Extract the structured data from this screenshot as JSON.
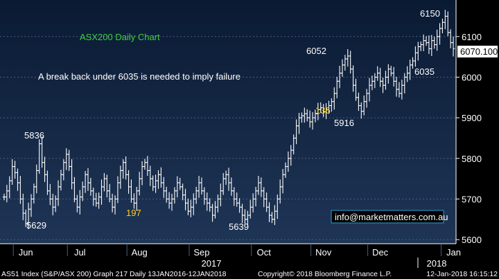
{
  "chart_data": {
    "type": "ohlc",
    "title": "ASX200 Daily Chart",
    "note": "A break back under 6035 is needed to imply failure",
    "email": "info@marketmatters.com.au",
    "last_price_label": "6070.100",
    "ylim": [
      5590,
      6190
    ],
    "y_ticks": [
      5600,
      5700,
      5800,
      5900,
      6000,
      6100
    ],
    "x_month_labels": [
      "Jun",
      "Jul",
      "Aug",
      "Sep",
      "Oct",
      "Nov",
      "Dec",
      "Jan"
    ],
    "x_year_labels": [
      "2017",
      "2018"
    ],
    "annotations": [
      {
        "text": "5836",
        "color": "white"
      },
      {
        "text": "5629",
        "color": "white"
      },
      {
        "text": "197",
        "color": "yellow"
      },
      {
        "text": "5639",
        "color": "white"
      },
      {
        "text": "6052",
        "color": "white"
      },
      {
        "text": "136",
        "color": "yellow"
      },
      {
        "text": "5916",
        "color": "white"
      },
      {
        "text": "6150",
        "color": "white"
      },
      {
        "text": "6035",
        "color": "white"
      }
    ],
    "closes": [
      5705,
      5720,
      5745,
      5780,
      5765,
      5740,
      5700,
      5665,
      5640,
      5675,
      5700,
      5730,
      5770,
      5836,
      5790,
      5760,
      5720,
      5700,
      5680,
      5700,
      5730,
      5760,
      5790,
      5810,
      5780,
      5740,
      5700,
      5680,
      5705,
      5730,
      5760,
      5740,
      5720,
      5700,
      5690,
      5705,
      5730,
      5750,
      5720,
      5700,
      5680,
      5700,
      5740,
      5770,
      5790,
      5760,
      5730,
      5700,
      5690,
      5720,
      5750,
      5780,
      5790,
      5770,
      5750,
      5730,
      5745,
      5760,
      5740,
      5720,
      5700,
      5690,
      5700,
      5720,
      5740,
      5730,
      5710,
      5690,
      5670,
      5680,
      5700,
      5720,
      5740,
      5720,
      5700,
      5690,
      5680,
      5660,
      5680,
      5700,
      5720,
      5750,
      5760,
      5740,
      5720,
      5700,
      5690,
      5680,
      5660,
      5650,
      5660,
      5680,
      5700,
      5720,
      5740,
      5720,
      5700,
      5680,
      5660,
      5650,
      5670,
      5700,
      5730,
      5760,
      5780,
      5800,
      5820,
      5850,
      5880,
      5900,
      5905,
      5910,
      5900,
      5890,
      5900,
      5910,
      5920,
      5925,
      5915,
      5920,
      5930,
      5940,
      5960,
      5990,
      6010,
      6030,
      6045,
      6052,
      6020,
      5980,
      5950,
      5930,
      5916,
      5940,
      5960,
      5980,
      5990,
      6000,
      6010,
      5990,
      5980,
      6000,
      6020,
      6010,
      5990,
      5970,
      5960,
      5980,
      6000,
      6010,
      6030,
      6040,
      6060,
      6075,
      6080,
      6090,
      6085,
      6070,
      6090,
      6080,
      6100,
      6120,
      6135,
      6150,
      6110,
      6085,
      6070
    ],
    "email_box": true,
    "footer": {
      "left": "AS51 Index (S&P/ASX 200) Graph 217  Daily 13JAN2016-12JAN2018",
      "center": "Copyright© 2018 Bloomberg Finance L.P.",
      "right": "12-Jan-2018 16:15:12"
    }
  }
}
